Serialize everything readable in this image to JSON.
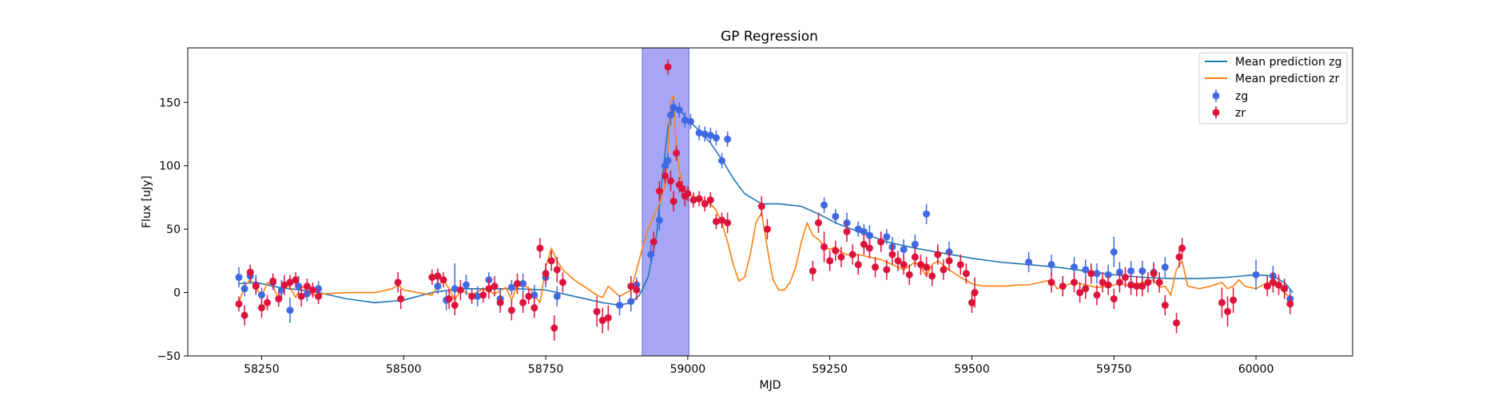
{
  "chart_data": {
    "type": "scatter",
    "title": "GP Regression",
    "xlabel": "MJD",
    "ylabel": "Flux [uJy]",
    "xlim": [
      58120,
      60170
    ],
    "ylim": [
      -50,
      193
    ],
    "x_ticks": [
      58250,
      58500,
      58750,
      59000,
      59250,
      59500,
      59750,
      60000
    ],
    "y_ticks": [
      -50,
      0,
      50,
      100,
      150
    ],
    "grid": false,
    "legend_position": "top-right",
    "legend": [
      "Mean prediction zg",
      "Mean prediction zr",
      "zg",
      "zr"
    ],
    "shaded_region": {
      "x0": 58920,
      "x1": 59002,
      "color": "#a6a6f5"
    },
    "series": [
      {
        "name": "Mean prediction zg",
        "kind": "line",
        "color": "#1f77b4",
        "x": [
          58210,
          58240,
          58280,
          58320,
          58350,
          58400,
          58450,
          58500,
          58550,
          58600,
          58650,
          58700,
          58750,
          58800,
          58850,
          58880,
          58900,
          58915,
          58930,
          58945,
          58955,
          58965,
          58975,
          58990,
          59000,
          59020,
          59040,
          59060,
          59080,
          59100,
          59130,
          59160,
          59200,
          59230,
          59260,
          59300,
          59350,
          59400,
          59450,
          59500,
          59550,
          59600,
          59650,
          59700,
          59750,
          59800,
          59850,
          59900,
          59950,
          60000,
          60030,
          60050,
          60065
        ],
        "y": [
          7,
          8,
          4,
          2,
          0,
          -5,
          -8,
          -6,
          0,
          3,
          3,
          3,
          2,
          -3,
          -8,
          -10,
          -8,
          -2,
          12,
          45,
          90,
          130,
          145,
          142,
          136,
          128,
          118,
          105,
          90,
          78,
          70,
          70,
          68,
          62,
          55,
          48,
          40,
          35,
          31,
          27,
          24,
          22,
          20,
          17,
          14,
          12,
          11,
          11,
          12,
          14,
          13,
          8,
          0
        ]
      },
      {
        "name": "Mean prediction zr",
        "kind": "line",
        "color": "#ff7f0e",
        "x": [
          58210,
          58220,
          58230,
          58240,
          58250,
          58260,
          58270,
          58280,
          58290,
          58300,
          58310,
          58320,
          58330,
          58340,
          58360,
          58400,
          58450,
          58480,
          58490,
          58500,
          58550,
          58560,
          58570,
          58580,
          58590,
          58600,
          58620,
          58640,
          58660,
          58680,
          58690,
          58700,
          58720,
          58740,
          58750,
          58760,
          58770,
          58780,
          58800,
          58820,
          58840,
          58850,
          58860,
          58880,
          58900,
          58910,
          58920,
          58930,
          58940,
          58950,
          58960,
          58965,
          58970,
          58975,
          58980,
          58990,
          59000,
          59010,
          59020,
          59030,
          59040,
          59050,
          59060,
          59070,
          59080,
          59090,
          59100,
          59110,
          59120,
          59130,
          59140,
          59150,
          59160,
          59170,
          59180,
          59190,
          59200,
          59210,
          59220,
          59230,
          59240,
          59250,
          59260,
          59270,
          59280,
          59290,
          59300,
          59320,
          59340,
          59360,
          59380,
          59400,
          59410,
          59420,
          59430,
          59440,
          59460,
          59480,
          59500,
          59520,
          59540,
          59560,
          59580,
          59600,
          59620,
          59640,
          59650,
          59660,
          59680,
          59700,
          59720,
          59740,
          59760,
          59780,
          59800,
          59820,
          59830,
          59840,
          59850,
          59860,
          59870,
          59880,
          59900,
          59920,
          59940,
          59950,
          59960,
          59970,
          59980,
          60000,
          60020,
          60040,
          60060,
          60065
        ],
        "y": [
          -8,
          5,
          10,
          4,
          -3,
          8,
          5,
          -6,
          8,
          4,
          -4,
          5,
          2,
          -2,
          -1,
          0,
          0,
          3,
          6,
          2,
          -2,
          5,
          10,
          3,
          -6,
          2,
          -2,
          3,
          -1,
          4,
          -6,
          6,
          4,
          -8,
          20,
          35,
          25,
          18,
          10,
          4,
          -2,
          -4,
          5,
          -3,
          2,
          18,
          35,
          50,
          60,
          70,
          85,
          110,
          150,
          155,
          110,
          85,
          77,
          76,
          74,
          72,
          70,
          65,
          55,
          40,
          22,
          9,
          12,
          30,
          55,
          63,
          35,
          10,
          2,
          2,
          8,
          20,
          40,
          55,
          45,
          42,
          36,
          34,
          36,
          32,
          30,
          29,
          30,
          28,
          26,
          22,
          18,
          24,
          20,
          13,
          22,
          25,
          18,
          12,
          7,
          5,
          5,
          5,
          6,
          6,
          8,
          10,
          3,
          5,
          8,
          6,
          4,
          5,
          7,
          5,
          8,
          10,
          4,
          5,
          -2,
          18,
          25,
          5,
          3,
          5,
          8,
          3,
          5,
          10,
          5,
          3,
          8,
          4,
          -4,
          -8
        ]
      },
      {
        "name": "zg",
        "kind": "errorbar",
        "color": "#4169e1",
        "x": [
          58210,
          58220,
          58230,
          58240,
          58250,
          58270,
          58285,
          58300,
          58315,
          58330,
          58350,
          58560,
          58575,
          58590,
          58610,
          58630,
          58650,
          58670,
          58690,
          58710,
          58730,
          58750,
          58770,
          58880,
          58900,
          58910,
          58935,
          58950,
          58960,
          58965,
          58970,
          58975,
          58985,
          58995,
          59005,
          59020,
          59030,
          59040,
          59050,
          59060,
          59070,
          59240,
          59260,
          59280,
          59300,
          59310,
          59320,
          59340,
          59350,
          59360,
          59380,
          59400,
          59420,
          59440,
          59460,
          59600,
          59640,
          59680,
          59700,
          59720,
          59740,
          59750,
          59760,
          59780,
          59800,
          59820,
          59840,
          60000,
          60030,
          60060
        ],
        "y": [
          12,
          3,
          13,
          6,
          -2,
          8,
          2,
          -14,
          5,
          -1,
          3,
          5,
          -6,
          3,
          6,
          -3,
          10,
          -5,
          4,
          7,
          -2,
          12,
          -3,
          -10,
          -7,
          6,
          30,
          57,
          100,
          104,
          140,
          146,
          144,
          136,
          135,
          126,
          125,
          124,
          122,
          104,
          121,
          69,
          60,
          55,
          50,
          48,
          45,
          40,
          44,
          36,
          34,
          38,
          62,
          30,
          32,
          24,
          22,
          20,
          18,
          15,
          14,
          32,
          16,
          17,
          17,
          16,
          20,
          14,
          13,
          -5
        ],
        "err": [
          8,
          6,
          6,
          8,
          6,
          6,
          8,
          10,
          8,
          6,
          6,
          6,
          8,
          20,
          8,
          8,
          6,
          8,
          6,
          8,
          8,
          8,
          8,
          8,
          8,
          6,
          8,
          8,
          6,
          6,
          8,
          6,
          6,
          6,
          6,
          6,
          6,
          6,
          6,
          6,
          6,
          6,
          6,
          8,
          6,
          6,
          8,
          8,
          6,
          8,
          8,
          8,
          8,
          8,
          8,
          8,
          8,
          8,
          8,
          8,
          8,
          12,
          8,
          8,
          8,
          8,
          8,
          12,
          8,
          8
        ]
      },
      {
        "name": "zr",
        "kind": "errorbar",
        "color": "#dc143c",
        "x": [
          58210,
          58220,
          58230,
          58240,
          58250,
          58260,
          58270,
          58280,
          58290,
          58300,
          58310,
          58320,
          58330,
          58340,
          58350,
          58490,
          58495,
          58550,
          58560,
          58570,
          58580,
          58590,
          58600,
          58620,
          58640,
          58650,
          58660,
          58670,
          58690,
          58700,
          58710,
          58720,
          58730,
          58740,
          58750,
          58760,
          58765,
          58770,
          58780,
          58840,
          58850,
          58860,
          58900,
          58910,
          58940,
          58950,
          58960,
          58965,
          58970,
          58975,
          58980,
          58985,
          58990,
          58995,
          59000,
          59010,
          59020,
          59030,
          59040,
          59050,
          59060,
          59070,
          59130,
          59140,
          59220,
          59230,
          59240,
          59250,
          59260,
          59270,
          59280,
          59290,
          59300,
          59310,
          59320,
          59330,
          59340,
          59350,
          59360,
          59370,
          59380,
          59390,
          59400,
          59410,
          59420,
          59430,
          59440,
          59450,
          59460,
          59480,
          59490,
          59500,
          59505,
          59640,
          59660,
          59680,
          59690,
          59700,
          59710,
          59720,
          59730,
          59740,
          59750,
          59760,
          59770,
          59780,
          59790,
          59800,
          59810,
          59820,
          59830,
          59840,
          59860,
          59865,
          59870,
          59940,
          59950,
          59960,
          60020,
          60030,
          60040,
          60050,
          60060
        ],
        "y": [
          -9,
          -18,
          16,
          5,
          -12,
          -8,
          9,
          -5,
          6,
          8,
          10,
          -3,
          5,
          2,
          -3,
          8,
          -5,
          12,
          13,
          10,
          -5,
          -10,
          2,
          -3,
          -2,
          3,
          5,
          -8,
          -14,
          7,
          -8,
          -3,
          -12,
          35,
          15,
          25,
          -28,
          18,
          8,
          -15,
          -22,
          -20,
          5,
          2,
          40,
          80,
          92,
          178,
          88,
          72,
          110,
          85,
          82,
          76,
          78,
          73,
          74,
          70,
          73,
          56,
          57,
          55,
          68,
          50,
          17,
          55,
          36,
          25,
          33,
          28,
          48,
          30,
          22,
          38,
          35,
          20,
          40,
          18,
          30,
          25,
          22,
          14,
          28,
          22,
          20,
          13,
          30,
          18,
          25,
          22,
          15,
          -8,
          0,
          8,
          5,
          8,
          0,
          3,
          15,
          -2,
          8,
          6,
          -5,
          8,
          12,
          6,
          5,
          5,
          8,
          15,
          8,
          -10,
          -24,
          28,
          35,
          -8,
          -15,
          -6,
          5,
          8,
          6,
          3,
          -9
        ],
        "err": [
          6,
          8,
          6,
          6,
          8,
          6,
          6,
          6,
          8,
          6,
          6,
          8,
          6,
          6,
          6,
          8,
          8,
          6,
          6,
          6,
          8,
          8,
          8,
          6,
          6,
          8,
          8,
          8,
          8,
          8,
          8,
          6,
          8,
          8,
          8,
          8,
          10,
          10,
          8,
          12,
          10,
          10,
          8,
          8,
          8,
          8,
          6,
          6,
          8,
          8,
          6,
          6,
          6,
          8,
          6,
          6,
          6,
          6,
          6,
          6,
          6,
          8,
          8,
          8,
          8,
          8,
          12,
          8,
          8,
          8,
          8,
          8,
          8,
          8,
          8,
          8,
          8,
          8,
          8,
          8,
          8,
          8,
          8,
          8,
          8,
          8,
          8,
          8,
          8,
          8,
          8,
          8,
          12,
          8,
          8,
          8,
          8,
          8,
          8,
          8,
          8,
          8,
          8,
          8,
          8,
          8,
          8,
          8,
          8,
          8,
          8,
          8,
          8,
          8,
          8,
          12,
          12,
          10,
          8,
          8,
          8,
          8,
          8
        ]
      }
    ]
  }
}
